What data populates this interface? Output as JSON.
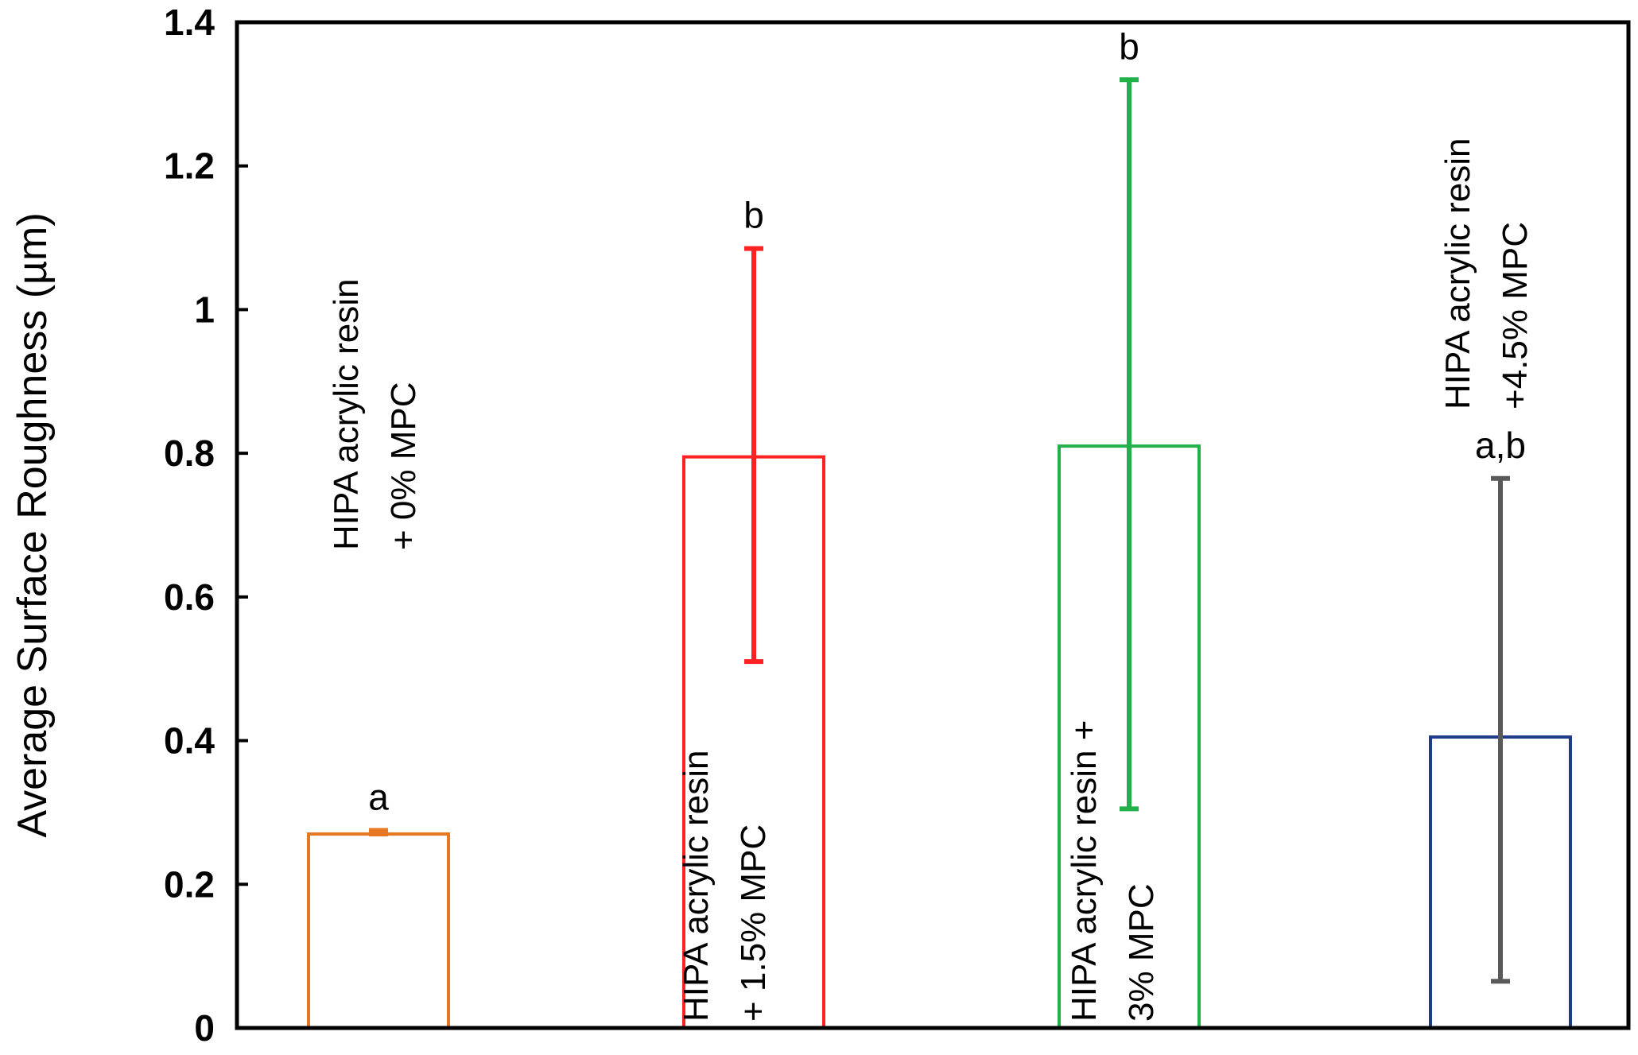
{
  "chart_data": {
    "type": "bar",
    "ylabel": "Average Surface Roughness (µm)",
    "xlabel": "",
    "ylim": [
      0,
      1.4
    ],
    "yticks": [
      "0",
      "0.2",
      "0.4",
      "0.6",
      "0.8",
      "1",
      "1.2",
      "1.4"
    ],
    "grid": false,
    "legend": "none",
    "series": [
      {
        "values": [
          0.27,
          0.795,
          0.81,
          0.405
        ],
        "error_low": [
          0.27,
          0.51,
          0.305,
          0.065
        ],
        "error_high": [
          0.275,
          1.085,
          1.32,
          0.765
        ]
      }
    ],
    "bars": [
      {
        "label": [
          "HIPA acrylic resin",
          "+ 0% MPC"
        ],
        "significance": "a",
        "bar_color": "#E87722",
        "error_color": "#E87722",
        "value": 0.27,
        "err_low": 0.27,
        "err_high": 0.275
      },
      {
        "label": [
          "HIPA acrylic resin",
          "+ 1.5% MPC"
        ],
        "significance": "b",
        "bar_color": "#FF2222",
        "error_color": "#FF2222",
        "value": 0.795,
        "err_low": 0.51,
        "err_high": 1.085
      },
      {
        "label": [
          "HIPA acrylic resin +",
          "3% MPC"
        ],
        "significance": "b",
        "bar_color": "#22B04A",
        "error_color": "#22B04A",
        "value": 0.81,
        "err_low": 0.305,
        "err_high": 1.32
      },
      {
        "label": [
          "HIPA acrylic resin",
          "+4.5% MPC"
        ],
        "significance": "a,b",
        "bar_color": "#1F3A8A",
        "error_color": "#5A5A5A",
        "value": 0.405,
        "err_low": 0.065,
        "err_high": 0.765
      }
    ]
  }
}
